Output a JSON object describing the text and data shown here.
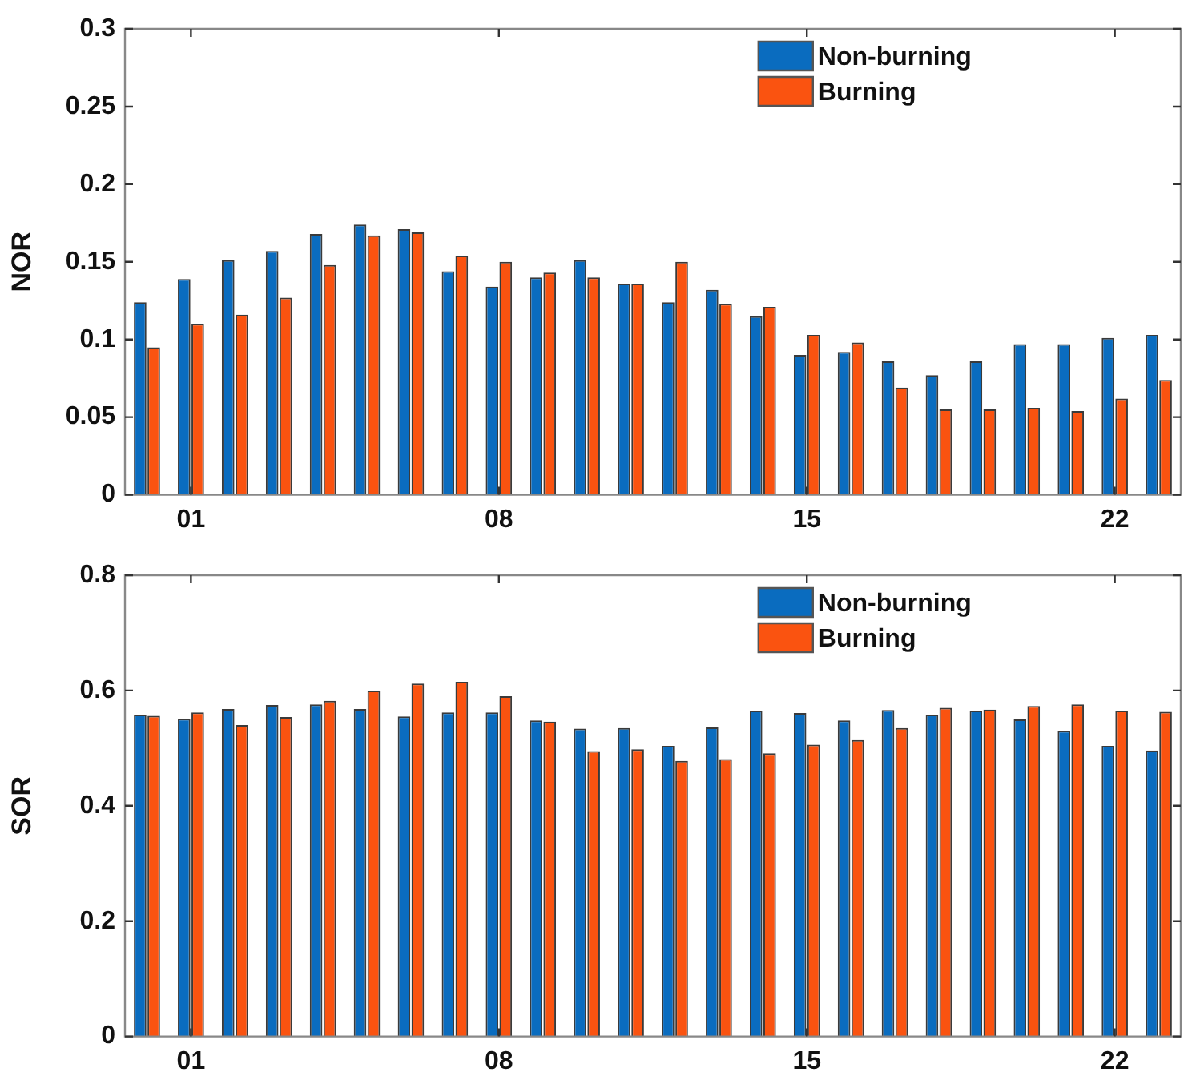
{
  "chart_data": [
    {
      "type": "bar",
      "ylabel": "NOR",
      "categories": [
        null,
        "01",
        null,
        null,
        null,
        null,
        null,
        null,
        "08",
        null,
        null,
        null,
        null,
        null,
        null,
        "15",
        null,
        null,
        null,
        null,
        null,
        null,
        "22",
        null
      ],
      "series": [
        {
          "name": "Non-burning",
          "color": "#0a6cbf",
          "values": [
            0.124,
            0.139,
            0.151,
            0.157,
            0.168,
            0.174,
            0.171,
            0.144,
            0.134,
            0.14,
            0.151,
            0.136,
            0.124,
            0.132,
            0.115,
            0.09,
            0.092,
            0.086,
            0.077,
            0.086,
            0.097,
            0.097,
            0.101,
            0.103
          ]
        },
        {
          "name": "Burning",
          "color": "#fa5310",
          "values": [
            0.095,
            0.11,
            0.116,
            0.127,
            0.148,
            0.167,
            0.169,
            0.154,
            0.15,
            0.143,
            0.14,
            0.136,
            0.15,
            0.123,
            0.121,
            0.103,
            0.098,
            0.069,
            0.055,
            0.055,
            0.056,
            0.054,
            0.062,
            0.074
          ]
        }
      ],
      "ylim": [
        0,
        0.3
      ],
      "yticks": [
        0,
        0.05,
        0.1,
        0.15,
        0.2,
        0.25,
        0.3
      ],
      "legend": "top right"
    },
    {
      "type": "bar",
      "ylabel": "SOR",
      "categories": [
        null,
        "01",
        null,
        null,
        null,
        null,
        null,
        null,
        "08",
        null,
        null,
        null,
        null,
        null,
        null,
        "15",
        null,
        null,
        null,
        null,
        null,
        null,
        "22",
        null
      ],
      "series": [
        {
          "name": "Non-burning",
          "color": "#0a6cbf",
          "values": [
            0.558,
            0.551,
            0.568,
            0.575,
            0.576,
            0.568,
            0.555,
            0.562,
            0.562,
            0.548,
            0.534,
            0.535,
            0.504,
            0.536,
            0.565,
            0.561,
            0.548,
            0.566,
            0.558,
            0.565,
            0.55,
            0.53,
            0.504,
            0.496
          ]
        },
        {
          "name": "Burning",
          "color": "#fa5310",
          "values": [
            0.556,
            0.562,
            0.54,
            0.554,
            0.582,
            0.6,
            0.612,
            0.615,
            0.59,
            0.546,
            0.495,
            0.498,
            0.478,
            0.481,
            0.491,
            0.506,
            0.514,
            0.535,
            0.57,
            0.567,
            0.573,
            0.576,
            0.565,
            0.563
          ]
        }
      ],
      "ylim": [
        0,
        0.8
      ],
      "yticks": [
        0,
        0.2,
        0.4,
        0.6,
        0.8
      ],
      "legend": "top right"
    }
  ]
}
